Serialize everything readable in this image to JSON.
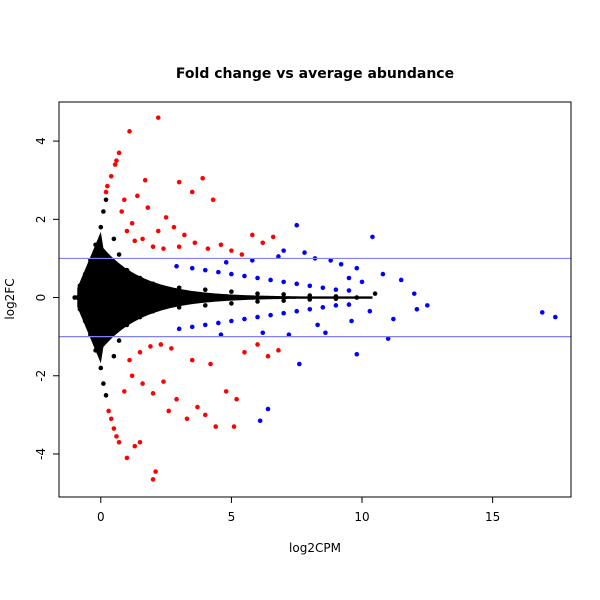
{
  "chart_data": {
    "type": "scatter",
    "title": "Fold change vs average abundance",
    "xlabel": "log2CPM",
    "ylabel": "log2FC",
    "xlim": [
      -1.6,
      18.0
    ],
    "ylim": [
      -5.1,
      5.0
    ],
    "x_ticks": [
      0,
      5,
      10,
      15
    ],
    "y_ticks": [
      -4,
      -2,
      0,
      2,
      4
    ],
    "x_tick_labels": [
      "0",
      "5",
      "10",
      "15"
    ],
    "y_tick_labels": [
      "-4",
      "-2",
      "0",
      "2",
      "4"
    ],
    "hlines": [
      1,
      -1
    ],
    "colors": {
      "not_significant": "#000000",
      "significant_large_fc": "#ff0000",
      "significant_small_fc": "#0000ff",
      "hline": "#8080ff",
      "axis": "#000000"
    },
    "grid": false,
    "legend": "none",
    "series": [
      {
        "color_key": "significant_large_fc",
        "points": [
          [
            0.2,
            2.7
          ],
          [
            0.25,
            2.85
          ],
          [
            0.4,
            3.1
          ],
          [
            0.55,
            3.4
          ],
          [
            0.6,
            3.5
          ],
          [
            0.7,
            3.7
          ],
          [
            1.1,
            4.25
          ],
          [
            2.2,
            4.6
          ],
          [
            0.3,
            -2.9
          ],
          [
            0.4,
            -3.1
          ],
          [
            0.5,
            -3.35
          ],
          [
            0.6,
            -3.55
          ],
          [
            0.7,
            -3.7
          ],
          [
            1.0,
            -4.1
          ],
          [
            2.0,
            -4.65
          ],
          [
            2.1,
            -4.45
          ],
          [
            1.3,
            -3.8
          ],
          [
            1.5,
            -3.7
          ],
          [
            3.0,
            2.95
          ],
          [
            3.5,
            2.7
          ],
          [
            3.9,
            3.05
          ],
          [
            4.3,
            2.5
          ],
          [
            1.4,
            2.6
          ],
          [
            1.8,
            2.3
          ],
          [
            2.5,
            2.05
          ],
          [
            2.8,
            1.8
          ],
          [
            3.2,
            1.6
          ],
          [
            1.2,
            1.9
          ],
          [
            1.6,
            1.5
          ],
          [
            2.0,
            1.3
          ],
          [
            2.4,
            1.25
          ],
          [
            1.0,
            1.7
          ],
          [
            1.3,
            1.45
          ],
          [
            3.6,
            1.4
          ],
          [
            4.1,
            1.25
          ],
          [
            4.6,
            1.35
          ],
          [
            5.0,
            1.2
          ],
          [
            5.4,
            1.1
          ],
          [
            5.8,
            1.6
          ],
          [
            6.2,
            1.4
          ],
          [
            6.6,
            1.55
          ],
          [
            1.1,
            -1.6
          ],
          [
            1.5,
            -1.4
          ],
          [
            1.9,
            -1.25
          ],
          [
            2.3,
            -1.2
          ],
          [
            2.7,
            -1.3
          ],
          [
            1.2,
            -2.0
          ],
          [
            1.6,
            -2.2
          ],
          [
            2.0,
            -2.45
          ],
          [
            2.4,
            -2.15
          ],
          [
            2.9,
            -2.6
          ],
          [
            3.3,
            -3.1
          ],
          [
            3.7,
            -2.8
          ],
          [
            4.0,
            -3.0
          ],
          [
            4.4,
            -3.3
          ],
          [
            4.8,
            -2.4
          ],
          [
            5.2,
            -2.6
          ],
          [
            5.5,
            -1.4
          ],
          [
            6.0,
            -1.2
          ],
          [
            6.4,
            -1.5
          ],
          [
            6.8,
            -1.35
          ],
          [
            0.9,
            -2.4
          ],
          [
            0.8,
            2.2
          ],
          [
            0.9,
            2.5
          ],
          [
            1.7,
            3.0
          ],
          [
            5.1,
            -3.3
          ],
          [
            2.6,
            -2.9
          ],
          [
            3.5,
            -1.6
          ],
          [
            4.2,
            -1.7
          ],
          [
            2.2,
            1.7
          ],
          [
            3.0,
            1.3
          ]
        ]
      },
      {
        "color_key": "significant_small_fc",
        "points": [
          [
            2.9,
            0.8
          ],
          [
            3.5,
            0.75
          ],
          [
            4.0,
            0.7
          ],
          [
            4.5,
            0.65
          ],
          [
            5.0,
            0.6
          ],
          [
            5.5,
            0.55
          ],
          [
            6.0,
            0.5
          ],
          [
            6.5,
            0.45
          ],
          [
            7.0,
            0.4
          ],
          [
            7.5,
            0.35
          ],
          [
            8.0,
            0.3
          ],
          [
            8.5,
            0.25
          ],
          [
            9.0,
            0.2
          ],
          [
            9.5,
            0.18
          ],
          [
            3.0,
            -0.8
          ],
          [
            3.5,
            -0.75
          ],
          [
            4.0,
            -0.7
          ],
          [
            4.5,
            -0.65
          ],
          [
            5.0,
            -0.6
          ],
          [
            5.5,
            -0.55
          ],
          [
            6.0,
            -0.5
          ],
          [
            6.5,
            -0.45
          ],
          [
            7.0,
            -0.4
          ],
          [
            7.5,
            -0.35
          ],
          [
            8.0,
            -0.3
          ],
          [
            8.5,
            -0.25
          ],
          [
            9.0,
            -0.2
          ],
          [
            9.5,
            -0.18
          ],
          [
            7.5,
            1.85
          ],
          [
            7.0,
            1.2
          ],
          [
            6.8,
            1.05
          ],
          [
            7.8,
            1.15
          ],
          [
            8.2,
            1.0
          ],
          [
            8.8,
            0.95
          ],
          [
            9.2,
            0.85
          ],
          [
            9.8,
            0.75
          ],
          [
            10.4,
            1.55
          ],
          [
            10.8,
            0.6
          ],
          [
            11.5,
            0.45
          ],
          [
            12.0,
            0.1
          ],
          [
            12.5,
            -0.2
          ],
          [
            12.1,
            -0.3
          ],
          [
            11.2,
            -0.55
          ],
          [
            11.0,
            -1.05
          ],
          [
            9.8,
            -1.45
          ],
          [
            8.6,
            -0.9
          ],
          [
            8.3,
            -0.7
          ],
          [
            7.6,
            -1.7
          ],
          [
            6.4,
            -2.85
          ],
          [
            6.1,
            -3.15
          ],
          [
            7.2,
            -0.95
          ],
          [
            10.0,
            0.4
          ],
          [
            10.3,
            -0.35
          ],
          [
            16.9,
            -0.38
          ],
          [
            17.4,
            -0.5
          ],
          [
            5.8,
            0.95
          ],
          [
            6.2,
            -0.9
          ],
          [
            4.8,
            0.9
          ],
          [
            4.6,
            -0.95
          ],
          [
            9.5,
            0.5
          ],
          [
            9.6,
            -0.6
          ]
        ]
      },
      {
        "color_key": "not_significant",
        "points": [
          [
            -1.0,
            0.0
          ],
          [
            -0.8,
            0.3
          ],
          [
            -0.8,
            -0.3
          ],
          [
            -0.6,
            0.6
          ],
          [
            -0.6,
            -0.6
          ],
          [
            -0.4,
            0.95
          ],
          [
            -0.4,
            -0.95
          ],
          [
            -0.2,
            1.35
          ],
          [
            -0.2,
            -1.35
          ],
          [
            0.0,
            1.8
          ],
          [
            0.0,
            -1.8
          ],
          [
            0.1,
            2.2
          ],
          [
            0.1,
            -2.2
          ],
          [
            0.2,
            2.5
          ],
          [
            0.2,
            -2.5
          ],
          [
            0.3,
            0.8
          ],
          [
            0.3,
            -0.8
          ],
          [
            0.5,
            1.5
          ],
          [
            0.5,
            -1.5
          ],
          [
            0.7,
            1.1
          ],
          [
            0.7,
            -1.1
          ],
          [
            1.0,
            0.7
          ],
          [
            1.0,
            -0.7
          ],
          [
            1.5,
            0.5
          ],
          [
            1.5,
            -0.5
          ],
          [
            2.0,
            0.35
          ],
          [
            2.0,
            -0.35
          ],
          [
            3.0,
            0.25
          ],
          [
            3.0,
            -0.25
          ],
          [
            4.0,
            0.2
          ],
          [
            4.0,
            -0.2
          ],
          [
            5.0,
            0.15
          ],
          [
            5.0,
            -0.15
          ],
          [
            6.0,
            0.1
          ],
          [
            6.0,
            -0.1
          ],
          [
            7.0,
            0.08
          ],
          [
            7.0,
            -0.08
          ],
          [
            8.0,
            0.05
          ],
          [
            8.0,
            -0.05
          ],
          [
            9.0,
            0.03
          ],
          [
            9.0,
            -0.03
          ],
          [
            9.8,
            0.0
          ],
          [
            10.5,
            0.1
          ],
          [
            -0.9,
            0.0
          ],
          [
            -0.3,
            0.0
          ],
          [
            0.4,
            0.0
          ]
        ]
      }
    ]
  }
}
